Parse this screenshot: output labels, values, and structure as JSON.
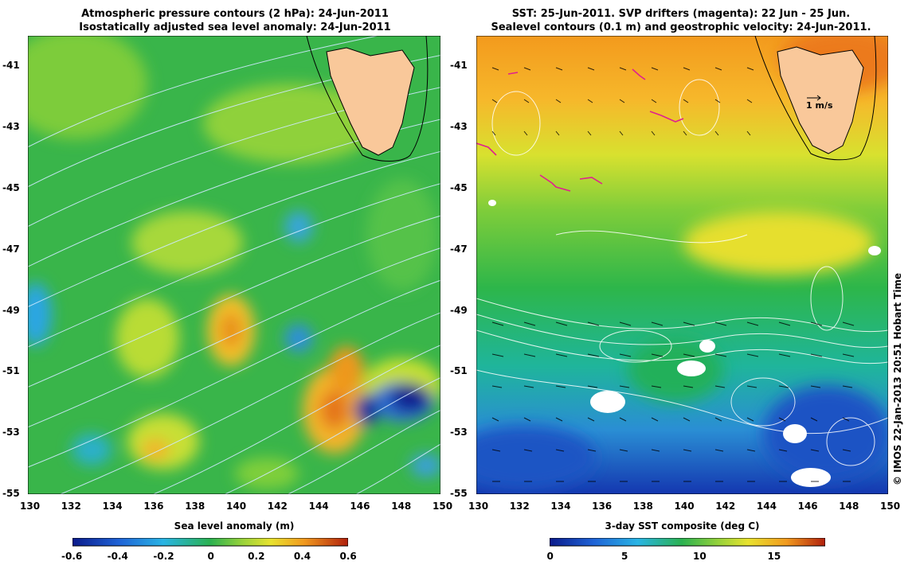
{
  "left_panel": {
    "title_line1": "Atmospheric pressure contours (2 hPa): 24-Jun-2011",
    "title_line2": "Isostatically adjusted sea level anomaly: 24-Jun-2011",
    "colorbar_label": "Sea level anomaly (m)",
    "colorbar_ticks": [
      "-0.6",
      "-0.4",
      "-0.2",
      "0",
      "0.2",
      "0.4",
      "0.6"
    ],
    "colorbar_range": [
      -0.6,
      0.6
    ]
  },
  "right_panel": {
    "title_line1": "SST: 25-Jun-2011. SVP drifters (magenta): 22 Jun - 25 Jun.",
    "title_line2": "Sealevel contours (0.1 m) and geostrophic velocity: 24-Jun-2011.",
    "colorbar_label": "3-day SST composite (deg C)",
    "colorbar_ticks": [
      "0",
      "5",
      "10",
      "15"
    ],
    "colorbar_range": [
      0,
      18.5
    ],
    "velocity_scale_label": "1 m/s"
  },
  "axes": {
    "lon_ticks": [
      "130",
      "132",
      "134",
      "136",
      "138",
      "140",
      "142",
      "144",
      "146",
      "148",
      "150"
    ],
    "lat_ticks": [
      "-41",
      "-43",
      "-45",
      "-47",
      "-49",
      "-51",
      "-53",
      "-55"
    ],
    "lon_range": [
      130,
      150
    ],
    "lat_range": [
      -55,
      -40
    ]
  },
  "credit": "© IMOS 22-Jan-2013 20:51 Hobart Time",
  "colors": {
    "land": "#f9c89a",
    "coastline": "#000000",
    "pressure_contours": "#cfe9ff",
    "sealevel_contours": "#ffffff",
    "drifters": "#e0208e"
  }
}
